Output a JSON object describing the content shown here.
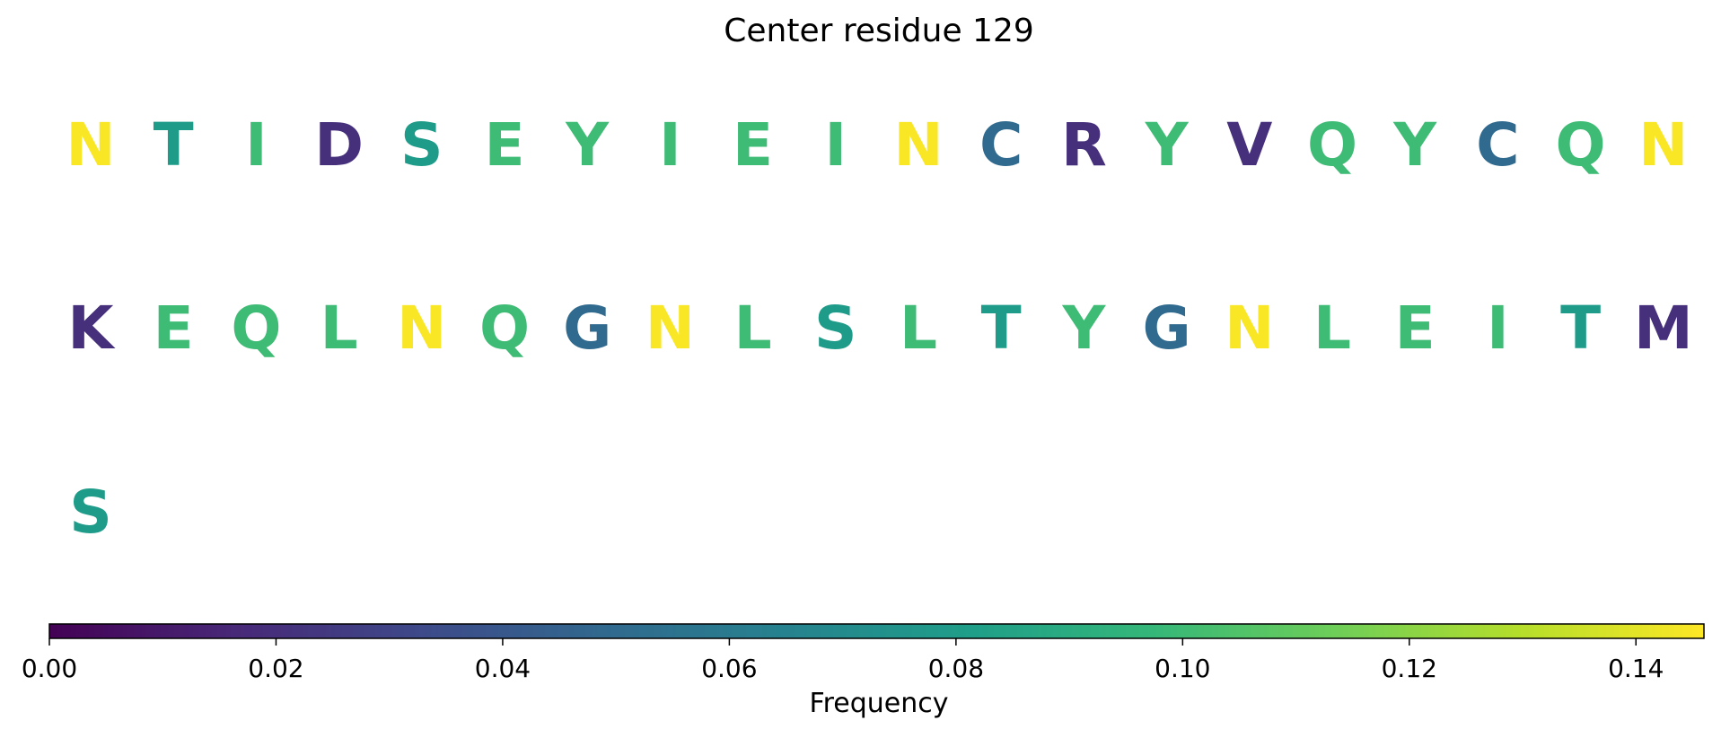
{
  "chart_data": {
    "type": "sequence-logo",
    "title": "Center residue 129",
    "residues": [
      {
        "letter": "N",
        "value": 0.145
      },
      {
        "letter": "T",
        "value": 0.08
      },
      {
        "letter": "I",
        "value": 0.1
      },
      {
        "letter": "D",
        "value": 0.02
      },
      {
        "letter": "S",
        "value": 0.08
      },
      {
        "letter": "E",
        "value": 0.1
      },
      {
        "letter": "Y",
        "value": 0.1
      },
      {
        "letter": "I",
        "value": 0.1
      },
      {
        "letter": "E",
        "value": 0.1
      },
      {
        "letter": "I",
        "value": 0.1
      },
      {
        "letter": "N",
        "value": 0.145
      },
      {
        "letter": "C",
        "value": 0.05
      },
      {
        "letter": "R",
        "value": 0.02
      },
      {
        "letter": "Y",
        "value": 0.1
      },
      {
        "letter": "V",
        "value": 0.02
      },
      {
        "letter": "Q",
        "value": 0.1
      },
      {
        "letter": "Y",
        "value": 0.1
      },
      {
        "letter": "C",
        "value": 0.05
      },
      {
        "letter": "Q",
        "value": 0.1
      },
      {
        "letter": "N",
        "value": 0.145
      },
      {
        "letter": "K",
        "value": 0.02
      },
      {
        "letter": "E",
        "value": 0.1
      },
      {
        "letter": "Q",
        "value": 0.1
      },
      {
        "letter": "L",
        "value": 0.1
      },
      {
        "letter": "N",
        "value": 0.145
      },
      {
        "letter": "Q",
        "value": 0.1
      },
      {
        "letter": "G",
        "value": 0.05
      },
      {
        "letter": "N",
        "value": 0.145
      },
      {
        "letter": "L",
        "value": 0.1
      },
      {
        "letter": "S",
        "value": 0.08
      },
      {
        "letter": "L",
        "value": 0.1
      },
      {
        "letter": "T",
        "value": 0.08
      },
      {
        "letter": "Y",
        "value": 0.1
      },
      {
        "letter": "G",
        "value": 0.05
      },
      {
        "letter": "N",
        "value": 0.145
      },
      {
        "letter": "L",
        "value": 0.1
      },
      {
        "letter": "E",
        "value": 0.1
      },
      {
        "letter": "I",
        "value": 0.1
      },
      {
        "letter": "T",
        "value": 0.08
      },
      {
        "letter": "M",
        "value": 0.02
      },
      {
        "letter": "S",
        "value": 0.08
      }
    ],
    "residues_per_row": 20,
    "colorbar": {
      "label": "Frequency",
      "colormap": "viridis",
      "range": [
        0.0,
        0.146
      ],
      "ticks": [
        0.0,
        0.02,
        0.04,
        0.06,
        0.08,
        0.1,
        0.12,
        0.14
      ],
      "tick_labels": [
        "0.00",
        "0.02",
        "0.04",
        "0.06",
        "0.08",
        "0.10",
        "0.12",
        "0.14"
      ]
    },
    "colors": {
      "viridis_stops": [
        "#440154",
        "#482878",
        "#3e4989",
        "#31688e",
        "#26828e",
        "#1f9e89",
        "#35b779",
        "#6ece58",
        "#b5de2b",
        "#fde725"
      ]
    }
  }
}
